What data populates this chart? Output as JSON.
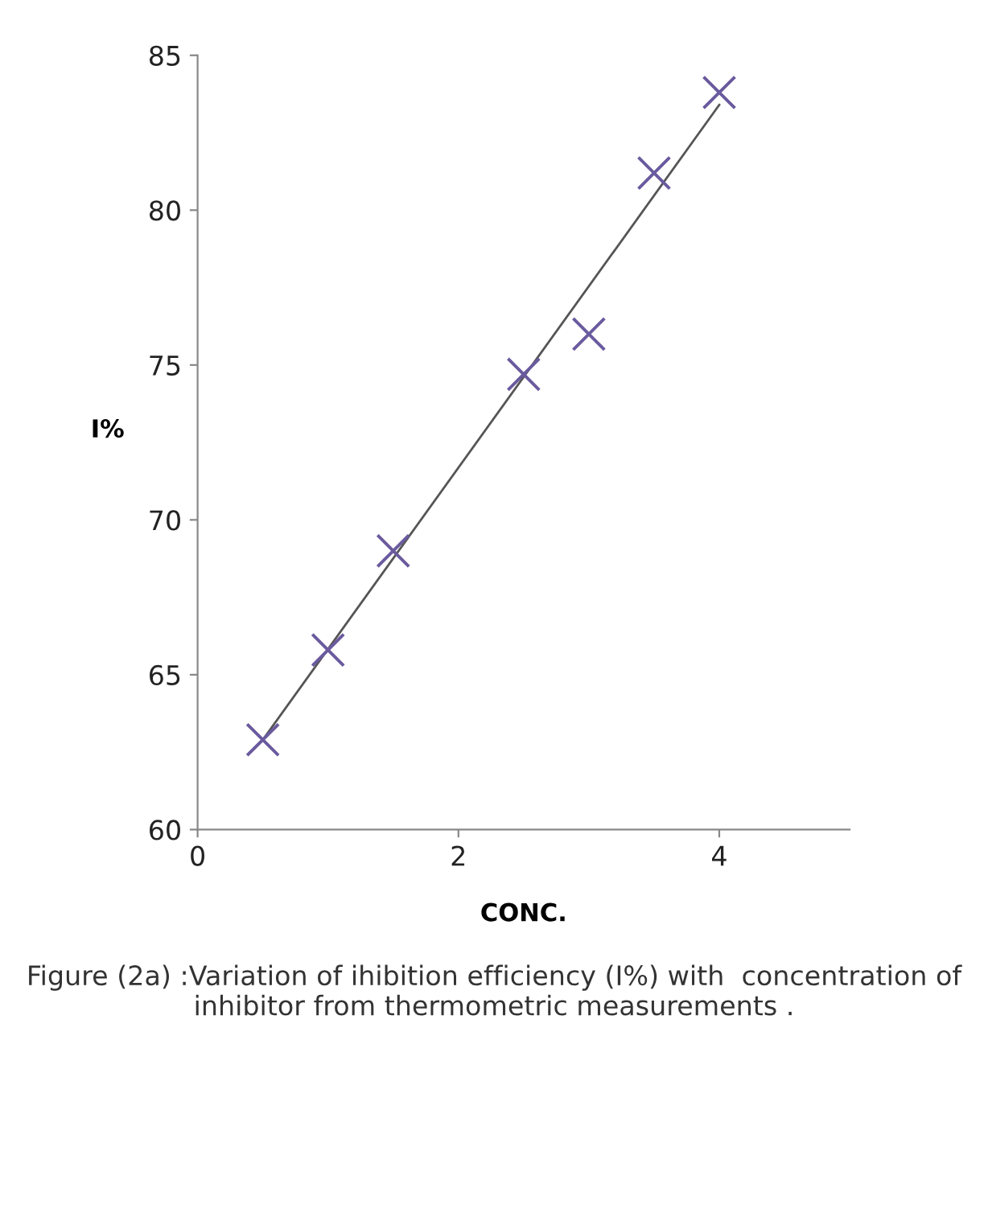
{
  "chart_data": {
    "type": "scatter",
    "xlabel": "CONC.",
    "ylabel": "I%",
    "series": [
      {
        "color": "#6a5a9e",
        "marker": "cross",
        "x": [
          0.5,
          1.0,
          1.5,
          2.5,
          3.0,
          3.5,
          4.0
        ],
        "values": [
          62.9,
          65.8,
          69.0,
          74.7,
          76.0,
          81.2,
          83.8
        ]
      },
      {
        "type": "line",
        "color": "#555555",
        "marker": "none",
        "x": [
          0.5,
          4.0
        ],
        "values": [
          62.9,
          83.4
        ]
      }
    ],
    "xlim": [
      0,
      5
    ],
    "xticks": [
      0,
      2,
      4
    ],
    "ylim": [
      60,
      85
    ],
    "yticks": [
      60,
      65,
      70,
      75,
      80,
      85
    ],
    "grid": false,
    "legend": false,
    "annotations": [
      "Figure (2a) :Variation of ihibition efficiency (I%) with  concentration of inhibitor from thermometric measurements ."
    ]
  }
}
